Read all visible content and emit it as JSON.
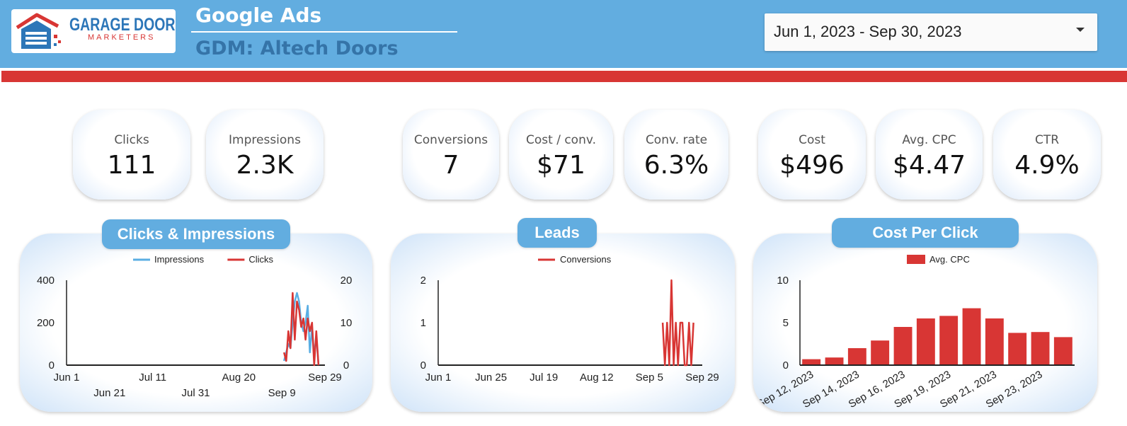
{
  "header": {
    "logo": {
      "word1": "GARAGE DOOR",
      "word2": "MARKETERS"
    },
    "title": "Google Ads",
    "subtitle": "GDM: Altech Doors",
    "date_range": "Jun 1, 2023 - Sep 30, 2023"
  },
  "kpis": [
    {
      "label": "Clicks",
      "value": "111"
    },
    {
      "label": "Impressions",
      "value": "2.3K"
    },
    {
      "label": "Conversions",
      "value": "7"
    },
    {
      "label": "Cost / conv.",
      "value": "$71"
    },
    {
      "label": "Conv. rate",
      "value": "6.3%"
    },
    {
      "label": "Cost",
      "value": "$496"
    },
    {
      "label": "Avg. CPC",
      "value": "$4.47"
    },
    {
      "label": "CTR",
      "value": "4.9%"
    }
  ],
  "colors": {
    "header_blue": "#62ade0",
    "accent_red": "#d83634",
    "impressions_blue": "#5aaee3"
  },
  "chart_data": [
    {
      "type": "line",
      "title": "Clicks & Impressions",
      "x_range": [
        "Jun 1",
        "Sep 29"
      ],
      "x_ticks_row1": [
        "Jun 1",
        "Jul 11",
        "Aug 20",
        "Sep 29"
      ],
      "x_ticks_row2": [
        "Jun 21",
        "Jul 31",
        "Sep 9"
      ],
      "y_left_ticks": [
        "0",
        "200",
        "400"
      ],
      "y_right_ticks": [
        "0",
        "10",
        "20"
      ],
      "y_left_range": [
        0,
        400
      ],
      "y_right_range": [
        0,
        20
      ],
      "legend_position": "top",
      "series": [
        {
          "name": "Impressions",
          "axis": "left",
          "color": "#5aaee3",
          "x": [
            "Sep 10",
            "Sep 11",
            "Sep 12",
            "Sep 13",
            "Sep 14",
            "Sep 15",
            "Sep 16",
            "Sep 17",
            "Sep 18",
            "Sep 19",
            "Sep 20",
            "Sep 21",
            "Sep 22",
            "Sep 23",
            "Sep 24",
            "Sep 25",
            "Sep 26"
          ],
          "values": [
            20,
            60,
            100,
            80,
            200,
            300,
            340,
            300,
            200,
            160,
            200,
            280,
            60,
            180,
            40,
            140,
            0
          ]
        },
        {
          "name": "Clicks",
          "axis": "right",
          "color": "#d83634",
          "x": [
            "Sep 10",
            "Sep 11",
            "Sep 12",
            "Sep 13",
            "Sep 14",
            "Sep 15",
            "Sep 16",
            "Sep 17",
            "Sep 18",
            "Sep 19",
            "Sep 20",
            "Sep 21",
            "Sep 22",
            "Sep 23",
            "Sep 24",
            "Sep 25",
            "Sep 26"
          ],
          "values": [
            3,
            1,
            8,
            4,
            17,
            6,
            15,
            13,
            9,
            11,
            6,
            11,
            8,
            10,
            0,
            8,
            0
          ]
        }
      ]
    },
    {
      "type": "line",
      "title": "Leads",
      "x_range": [
        "Jun 1",
        "Sep 29"
      ],
      "x_ticks": [
        "Jun 1",
        "Jun 25",
        "Jul 19",
        "Aug 12",
        "Sep 5",
        "Sep 29"
      ],
      "y_ticks": [
        "0",
        "1",
        "2"
      ],
      "y_range": [
        0,
        2
      ],
      "legend_position": "top",
      "series": [
        {
          "name": "Conversions",
          "color": "#d83634",
          "x": [
            "Sep 11",
            "Sep 12",
            "Sep 13",
            "Sep 14",
            "Sep 15",
            "Sep 16",
            "Sep 17",
            "Sep 18",
            "Sep 19",
            "Sep 20",
            "Sep 21",
            "Sep 22",
            "Sep 23",
            "Sep 24",
            "Sep 25"
          ],
          "values": [
            1,
            0,
            1,
            0,
            2,
            0,
            1,
            0,
            1,
            1,
            0,
            0,
            1,
            0,
            1
          ]
        }
      ]
    },
    {
      "type": "bar",
      "title": "Cost Per Click",
      "categories": [
        "Sep 12, 2023",
        "Sep 13, 2023",
        "Sep 14, 2023",
        "Sep 15, 2023",
        "Sep 16, 2023",
        "Sep 17, 2023",
        "Sep 19, 2023",
        "Sep 20, 2023",
        "Sep 21, 2023",
        "Sep 22, 2023",
        "Sep 23, 2023",
        "Sep 24, 2023"
      ],
      "x_tick_labels": [
        "Sep 12, 2023",
        "Sep 14, 2023",
        "Sep 16, 2023",
        "Sep 19, 2023",
        "Sep 21, 2023",
        "Sep 23, 2023"
      ],
      "y_ticks": [
        "0",
        "5",
        "10"
      ],
      "y_range": [
        0,
        10
      ],
      "legend_position": "top",
      "series": [
        {
          "name": "Avg. CPC",
          "color": "#d83634",
          "values": [
            0.7,
            0.9,
            2.0,
            2.9,
            4.5,
            5.5,
            5.8,
            6.7,
            5.5,
            3.8,
            3.9,
            3.3
          ]
        }
      ]
    }
  ]
}
